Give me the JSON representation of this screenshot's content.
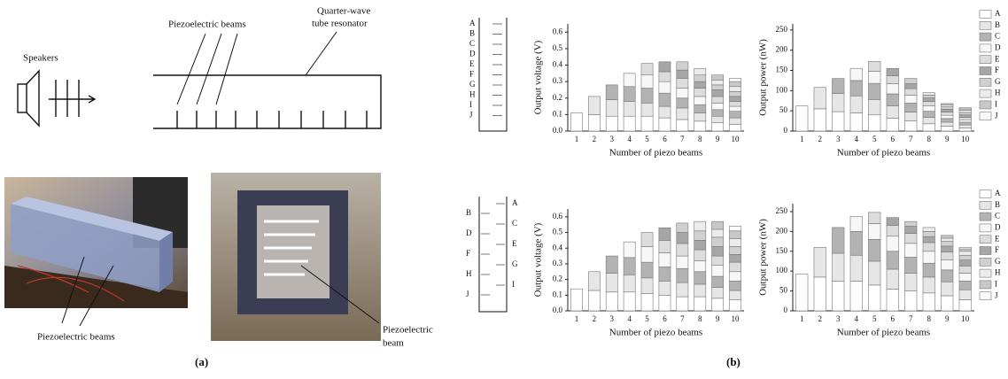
{
  "figure_a": {
    "speakers": "Speakers",
    "beams_label": "Piezoelectric beams",
    "resonator_label": [
      "Quarter-wave",
      "tube resonator"
    ],
    "photo_1_label": "Piezoelectric beams",
    "photo_2_label": [
      "Piezoelectric",
      "beam"
    ],
    "caption": "(a)"
  },
  "figure_b": {
    "caption": "(b)",
    "tube_top": {
      "labels": [
        "A",
        "B",
        "C",
        "D",
        "E",
        "F",
        "G",
        "H",
        "I",
        "J"
      ]
    },
    "tube_bottom": {
      "left": [
        "B",
        "D",
        "F",
        "H",
        "J"
      ],
      "right": [
        "A",
        "C",
        "E",
        "G",
        "I"
      ]
    }
  },
  "chart_data": [
    {
      "type": "bar",
      "stacked": true,
      "ylabel": "Output voltage (V)",
      "xlabel": "Number of piezo beams",
      "categories": [
        "1",
        "2",
        "3",
        "4",
        "5",
        "6",
        "7",
        "8",
        "9",
        "10"
      ],
      "ylim": [
        0,
        0.65
      ],
      "yticks": [
        {
          "value": 0,
          "label": "0.0"
        },
        0.1,
        0.2,
        0.3,
        0.4,
        0.5,
        0.6
      ],
      "series": [
        {
          "color": "#ffffff",
          "values": [
            0.11,
            0.1,
            0.09,
            0.09,
            0.09,
            0.08,
            0.07,
            0.06,
            0.05,
            0.04
          ]
        },
        {
          "color": "#e6e6e6",
          "values": [
            null,
            0.11,
            0.1,
            0.09,
            0.08,
            0.07,
            0.07,
            0.05,
            0.04,
            0.04
          ]
        },
        {
          "color": "#b3b3b3",
          "values": [
            null,
            null,
            0.09,
            0.09,
            0.09,
            0.08,
            0.06,
            0.05,
            0.04,
            0.04
          ]
        },
        {
          "color": "#f7f7f7",
          "values": [
            null,
            null,
            null,
            0.08,
            0.08,
            0.07,
            0.06,
            0.05,
            0.04,
            0.03
          ]
        },
        {
          "color": "#dcdcdc",
          "values": [
            null,
            null,
            null,
            null,
            0.07,
            0.06,
            0.06,
            0.05,
            0.04,
            0.03
          ]
        },
        {
          "color": "#a6a6a6",
          "values": [
            null,
            null,
            null,
            null,
            null,
            0.06,
            0.05,
            0.04,
            0.04,
            0.03
          ]
        },
        {
          "color": "#d0d0d0",
          "values": [
            null,
            null,
            null,
            null,
            null,
            null,
            0.05,
            0.04,
            0.03,
            0.03
          ]
        },
        {
          "color": "#ececec",
          "values": [
            null,
            null,
            null,
            null,
            null,
            null,
            null,
            0.04,
            0.03,
            0.03
          ]
        },
        {
          "color": "#c8c8c8",
          "values": [
            null,
            null,
            null,
            null,
            null,
            null,
            null,
            null,
            0.03,
            0.03
          ]
        },
        {
          "color": "#fafafa",
          "values": [
            null,
            null,
            null,
            null,
            null,
            null,
            null,
            null,
            null,
            0.02
          ]
        }
      ]
    },
    {
      "type": "bar",
      "stacked": true,
      "ylabel": "Output power (nW)",
      "xlabel": "Number of piezo beams",
      "legend": "right",
      "categories": [
        "1",
        "2",
        "3",
        "4",
        "5",
        "6",
        "7",
        "8",
        "9",
        "10"
      ],
      "ylim": [
        0,
        265
      ],
      "yticks": [
        0,
        50,
        100,
        150,
        200,
        250
      ],
      "series": [
        {
          "name": "A",
          "color": "#ffffff",
          "values": [
            62,
            55,
            48,
            45,
            40,
            32,
            25,
            18,
            12,
            8
          ]
        },
        {
          "name": "B",
          "color": "#e6e6e6",
          "values": [
            null,
            53,
            45,
            42,
            38,
            30,
            22,
            16,
            10,
            7
          ]
        },
        {
          "name": "C",
          "color": "#b3b3b3",
          "values": [
            null,
            null,
            37,
            38,
            40,
            30,
            22,
            15,
            9,
            7
          ]
        },
        {
          "name": "D",
          "color": "#f7f7f7",
          "values": [
            null,
            null,
            null,
            30,
            30,
            25,
            20,
            13,
            8,
            6
          ]
        },
        {
          "name": "E",
          "color": "#dcdcdc",
          "values": [
            null,
            null,
            null,
            null,
            24,
            20,
            16,
            11,
            8,
            6
          ]
        },
        {
          "name": "F",
          "color": "#a6a6a6",
          "values": [
            null,
            null,
            null,
            null,
            null,
            18,
            12,
            9,
            7,
            6
          ]
        },
        {
          "name": "G",
          "color": "#d0d0d0",
          "values": [
            null,
            null,
            null,
            null,
            null,
            null,
            13,
            7,
            6,
            6
          ]
        },
        {
          "name": "H",
          "color": "#ececec",
          "values": [
            null,
            null,
            null,
            null,
            null,
            null,
            null,
            6,
            5,
            5
          ]
        },
        {
          "name": "I",
          "color": "#c8c8c8",
          "values": [
            null,
            null,
            null,
            null,
            null,
            null,
            null,
            null,
            3,
            4
          ]
        },
        {
          "name": "J",
          "color": "#fafafa",
          "values": [
            null,
            null,
            null,
            null,
            null,
            null,
            null,
            null,
            null,
            3
          ]
        }
      ]
    },
    {
      "type": "bar",
      "stacked": true,
      "ylabel": "Output voltage (V)",
      "xlabel": "Number of piezo beams",
      "categories": [
        "1",
        "2",
        "3",
        "4",
        "5",
        "6",
        "7",
        "8",
        "9",
        "10"
      ],
      "ylim": [
        0,
        0.65
      ],
      "yticks": [
        {
          "value": 0,
          "label": "0.0"
        },
        0.1,
        0.2,
        0.3,
        0.4,
        0.5,
        0.6
      ],
      "series": [
        {
          "color": "#ffffff",
          "values": [
            0.14,
            0.13,
            0.12,
            0.12,
            0.11,
            0.1,
            0.09,
            0.09,
            0.08,
            0.07
          ]
        },
        {
          "color": "#e6e6e6",
          "values": [
            null,
            0.12,
            0.12,
            0.11,
            0.1,
            0.09,
            0.09,
            0.08,
            0.07,
            0.06
          ]
        },
        {
          "color": "#b3b3b3",
          "values": [
            null,
            null,
            0.11,
            0.11,
            0.1,
            0.09,
            0.09,
            0.08,
            0.07,
            0.06
          ]
        },
        {
          "color": "#f7f7f7",
          "values": [
            null,
            null,
            null,
            0.1,
            0.1,
            0.09,
            0.08,
            0.07,
            0.07,
            0.06
          ]
        },
        {
          "color": "#dcdcdc",
          "values": [
            null,
            null,
            null,
            null,
            0.09,
            0.08,
            0.08,
            0.07,
            0.06,
            0.06
          ]
        },
        {
          "color": "#a6a6a6",
          "values": [
            null,
            null,
            null,
            null,
            null,
            0.08,
            0.07,
            0.06,
            0.06,
            0.05
          ]
        },
        {
          "color": "#d0d0d0",
          "values": [
            null,
            null,
            null,
            null,
            null,
            null,
            0.06,
            0.06,
            0.06,
            0.05
          ]
        },
        {
          "color": "#ececec",
          "values": [
            null,
            null,
            null,
            null,
            null,
            null,
            null,
            0.06,
            0.05,
            0.05
          ]
        },
        {
          "color": "#c8c8c8",
          "values": [
            null,
            null,
            null,
            null,
            null,
            null,
            null,
            null,
            0.05,
            0.05
          ]
        },
        {
          "color": "#fafafa",
          "values": [
            null,
            null,
            null,
            null,
            null,
            null,
            null,
            null,
            null,
            0.03
          ]
        }
      ]
    },
    {
      "type": "bar",
      "stacked": true,
      "ylabel": "Output power (nW)",
      "xlabel": "Number of piezo beams",
      "legend": "right",
      "categories": [
        "1",
        "2",
        "3",
        "4",
        "5",
        "6",
        "7",
        "8",
        "9",
        "10"
      ],
      "ylim": [
        0,
        270
      ],
      "yticks": [
        0,
        50,
        100,
        150,
        200,
        250
      ],
      "series": [
        {
          "name": "A",
          "color": "#ffffff",
          "values": [
            93,
            85,
            75,
            75,
            65,
            55,
            50,
            45,
            38,
            28
          ]
        },
        {
          "name": "B",
          "color": "#e6e6e6",
          "values": [
            null,
            75,
            70,
            65,
            60,
            50,
            45,
            40,
            35,
            25
          ]
        },
        {
          "name": "C",
          "color": "#b3b3b3",
          "values": [
            null,
            null,
            65,
            60,
            55,
            45,
            40,
            35,
            30,
            22
          ]
        },
        {
          "name": "D",
          "color": "#f7f7f7",
          "values": [
            null,
            null,
            null,
            38,
            40,
            38,
            35,
            30,
            25,
            20
          ]
        },
        {
          "name": "E",
          "color": "#dcdcdc",
          "values": [
            null,
            null,
            null,
            null,
            28,
            27,
            25,
            22,
            20,
            18
          ]
        },
        {
          "name": "F",
          "color": "#a6a6a6",
          "values": [
            null,
            null,
            null,
            null,
            null,
            20,
            18,
            15,
            15,
            15
          ]
        },
        {
          "name": "G",
          "color": "#d0d0d0",
          "values": [
            null,
            null,
            null,
            null,
            null,
            null,
            12,
            13,
            12,
            12
          ]
        },
        {
          "name": "H",
          "color": "#ececec",
          "values": [
            null,
            null,
            null,
            null,
            null,
            null,
            null,
            10,
            8,
            10
          ]
        },
        {
          "name": "I",
          "color": "#c8c8c8",
          "values": [
            null,
            null,
            null,
            null,
            null,
            null,
            null,
            null,
            7,
            6
          ]
        },
        {
          "name": "J",
          "color": "#fafafa",
          "values": [
            null,
            null,
            null,
            null,
            null,
            null,
            null,
            null,
            null,
            4
          ]
        }
      ]
    }
  ]
}
